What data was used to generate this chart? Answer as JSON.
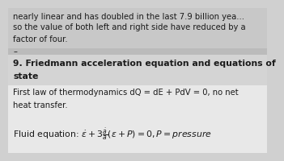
{
  "bg_color": "#d0d0d0",
  "top_text_lines": [
    "nearly linear and has doubled in the last 7.9 billion yea...",
    "so the value of both left and right side have reduced by a",
    "factor of four."
  ],
  "heading_line1": "9. Friedmann acceleration equation and equations of",
  "heading_line2": "state",
  "first_law_line1": "First law of thermodynamics dQ = dE + PdV = 0, no net",
  "first_law_line2": "heat transfer.",
  "fluid_eq": "Fluid equation: $\\dot{\\varepsilon} + 3\\frac{\\dot{a}}{a}(\\varepsilon + P) = 0, P = \\mathit{pressure}$",
  "text_color": "#1a1a1a",
  "font_size_top": 7.2,
  "font_size_heading": 7.8,
  "font_size_body": 7.2,
  "font_size_fluid": 7.8
}
